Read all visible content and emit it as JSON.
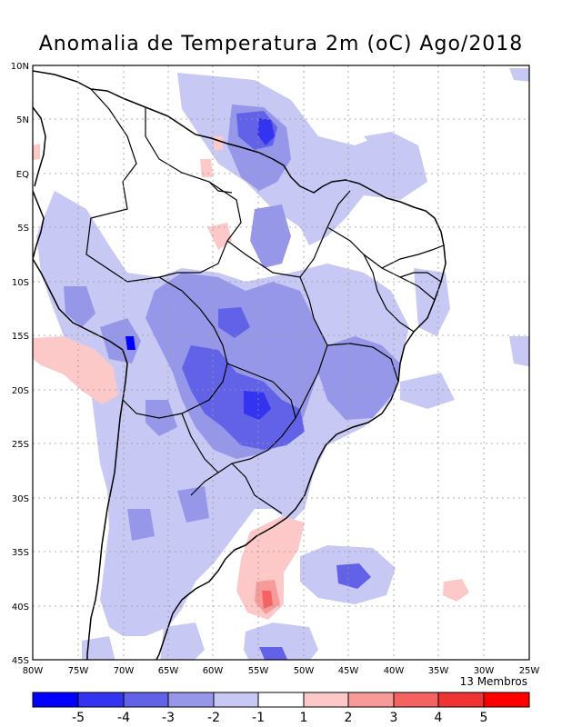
{
  "title": "Anomalia de Temperatura 2m (oC) Ago/2018",
  "members_label": "13 Membros",
  "lat_labels": [
    "10N",
    "5N",
    "EQ",
    "5S",
    "10S",
    "15S",
    "20S",
    "25S",
    "30S",
    "35S",
    "40S",
    "45S"
  ],
  "lon_labels": [
    "80W",
    "75W",
    "70W",
    "65W",
    "60W",
    "55W",
    "50W",
    "45W",
    "40W",
    "35W",
    "30W",
    "25W"
  ],
  "legend": {
    "colors": [
      "#0000ff",
      "#3333f0",
      "#6262e8",
      "#9797ea",
      "#c8c8f4",
      "#ffffff",
      "#fcc8c8",
      "#f89a9a",
      "#f46262",
      "#f03434",
      "#ff0000"
    ],
    "labels": [
      "-5",
      "-4",
      "-3",
      "-2",
      "-1",
      "1",
      "2",
      "3",
      "4",
      "5"
    ]
  }
}
